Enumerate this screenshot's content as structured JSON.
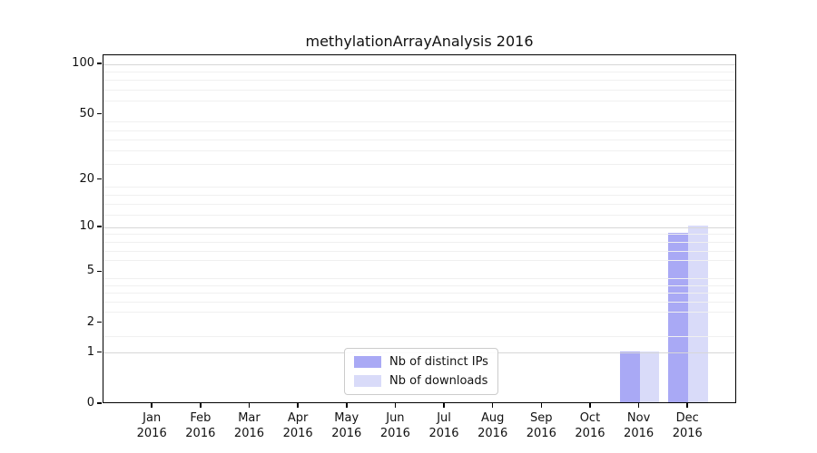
{
  "chart_data": {
    "type": "bar",
    "title": "methylationArrayAnalysis 2016",
    "categories": [
      "Jan 2016",
      "Feb 2016",
      "Mar 2016",
      "Apr 2016",
      "May 2016",
      "Jun 2016",
      "Jul 2016",
      "Aug 2016",
      "Sep 2016",
      "Oct 2016",
      "Nov 2016",
      "Dec 2016"
    ],
    "x": {
      "months": [
        "Jan",
        "Feb",
        "Mar",
        "Apr",
        "May",
        "Jun",
        "Jul",
        "Aug",
        "Sep",
        "Oct",
        "Nov",
        "Dec"
      ],
      "year": "2016"
    },
    "series": [
      {
        "name": "Nb of distinct IPs",
        "color": "#a9a9f5",
        "values": [
          0,
          0,
          0,
          0,
          0,
          0,
          0,
          0,
          0,
          0,
          1,
          9
        ]
      },
      {
        "name": "Nb of downloads",
        "color": "#d9dbf9",
        "values": [
          0,
          0,
          0,
          0,
          0,
          0,
          0,
          0,
          0,
          0,
          1,
          10
        ]
      }
    ],
    "xlabel": "",
    "ylabel": "",
    "y_scale": "log10(1+x)",
    "ylim": [
      0,
      114
    ],
    "y_ticks": [
      0,
      1,
      2,
      5,
      10,
      20,
      50,
      100
    ],
    "y_major_gridlines": [
      1,
      10,
      100
    ],
    "y_minor_gridlines": [
      1.5,
      2.5,
      3,
      3.5,
      4,
      4.5,
      6,
      7,
      8,
      9,
      12,
      14,
      16,
      18,
      25,
      30,
      35,
      40,
      45,
      60,
      70,
      80,
      90
    ],
    "grid": true,
    "legend_position": "inside-bottom-center",
    "colors": {
      "background": "#ffffff",
      "axis": "#000000",
      "grid_major": "#d7d7d7",
      "grid_minor": "#f0f0f0"
    }
  }
}
